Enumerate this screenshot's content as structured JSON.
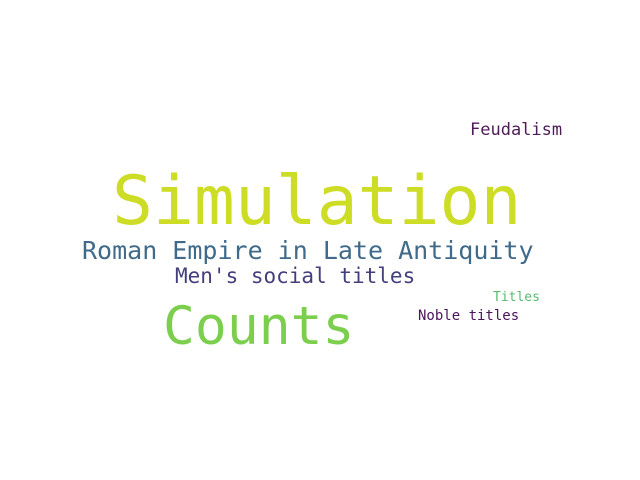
{
  "words": [
    {
      "id": "simulation",
      "text": "Simulation",
      "color": "#cddc24"
    },
    {
      "id": "roman",
      "text": "Roman Empire in Late Antiquity",
      "color": "#3f6a8a"
    },
    {
      "id": "mens",
      "text": "Men's social titles",
      "color": "#433f7d"
    },
    {
      "id": "counts",
      "text": "Counts",
      "color": "#7ccf4d"
    },
    {
      "id": "feudalism",
      "text": "Feudalism",
      "color": "#4f1a58"
    },
    {
      "id": "titles",
      "text": "Titles",
      "color": "#58bb6e"
    },
    {
      "id": "noble",
      "text": "Noble titles",
      "color": "#4a145a"
    }
  ]
}
